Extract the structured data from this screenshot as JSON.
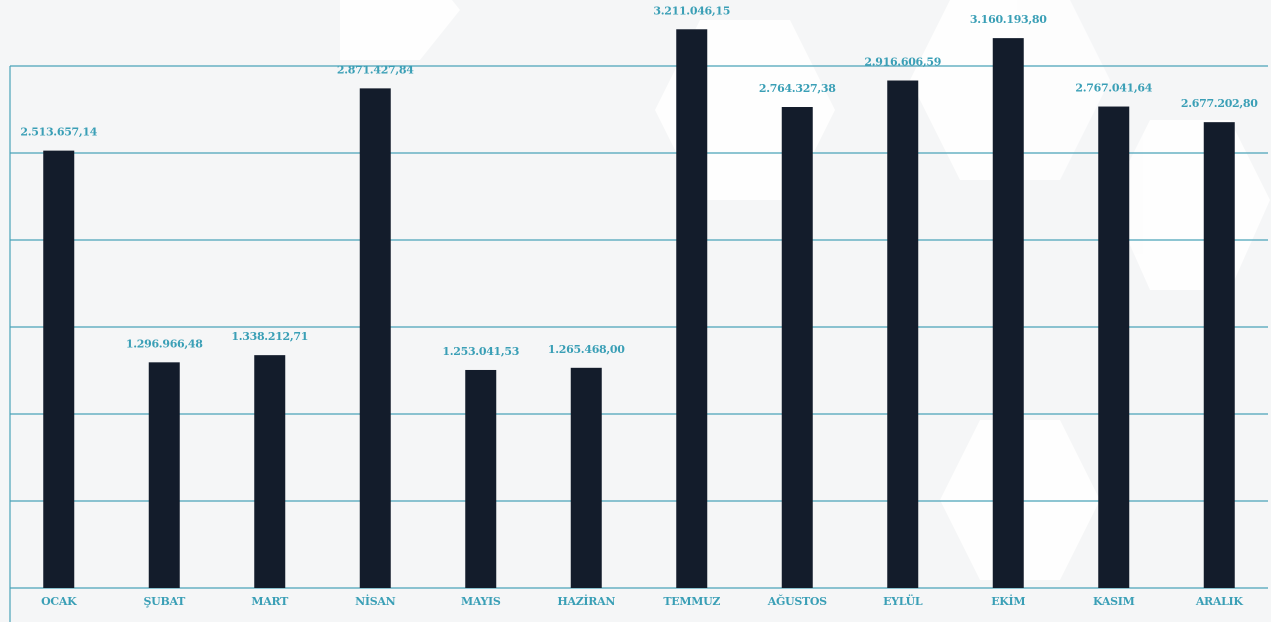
{
  "chart_data": {
    "type": "bar",
    "categories": [
      "OCAK",
      "ŞUBAT",
      "MART",
      "NİSAN",
      "MAYIS",
      "HAZİRAN",
      "TEMMUZ",
      "AĞUSTOS",
      "EYLÜL",
      "EKİM",
      "KASIM",
      "ARALIK"
    ],
    "values": [
      2513657.14,
      1296966.48,
      1338212.71,
      2871427.84,
      1253041.53,
      1265468.0,
      3211046.15,
      2764327.38,
      2916606.59,
      3160193.8,
      2767041.64,
      2677202.8
    ],
    "value_labels": [
      "2.513.657,14",
      "1.296.966,48",
      "1.338.212,71",
      "2.871.427,84",
      "1.253.041,53",
      "1.265.468,00",
      "3.211.046,15",
      "2.764.327,38",
      "2.916.606,59",
      "3.160.193,80",
      "2.767.041,64",
      "2.677.202,80"
    ],
    "color": "#131c2b",
    "ylim": [
      0,
      3000000
    ],
    "yticks": [
      0,
      500000,
      1000000,
      1500000,
      2000000,
      2500000,
      3000000
    ],
    "grid": true
  }
}
